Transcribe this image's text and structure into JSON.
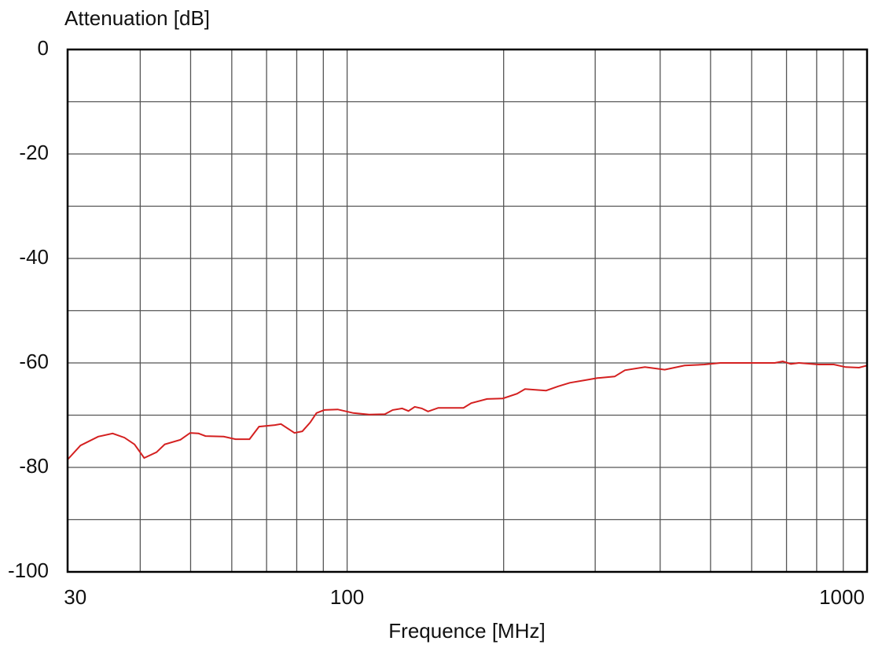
{
  "chart_data": {
    "type": "line",
    "x_label": "Frequence [MHz]",
    "y_label": "Attenuation [dB]",
    "xscale": "log",
    "xlim": [
      29,
      1000
    ],
    "xticks": [
      30,
      100,
      1000
    ],
    "xgrid": [
      40,
      50,
      60,
      70,
      80,
      90,
      100,
      200,
      300,
      400,
      500,
      600,
      700,
      800,
      900
    ],
    "ylim": [
      -100,
      0
    ],
    "yticks": [
      0,
      -20,
      -40,
      -60,
      -80,
      -100
    ],
    "ygrid": [
      -10,
      -20,
      -30,
      -40,
      -50,
      -60,
      -70,
      -80,
      -90
    ],
    "grid": true,
    "x": [
      29,
      30.7,
      33.2,
      35.4,
      37.3,
      39,
      40.7,
      43,
      44.6,
      47.8,
      49.9,
      51.8,
      53.4,
      57.9,
      61,
      64.9,
      67.7,
      72.6,
      74.6,
      79.2,
      82,
      84.9,
      87.3,
      90.4,
      95.9,
      102.8,
      110.3,
      118.2,
      122.4,
      127.6,
      131.2,
      134.9,
      139.2,
      143.1,
      149.7,
      167.4,
      173.3,
      185.8,
      199.3,
      212.2,
      219.9,
      241.4,
      254.3,
      268,
      287.5,
      303,
      327,
      342.3,
      373.9,
      408.2,
      445.7,
      486.6,
      522.5,
      664.6,
      688.5,
      713.6,
      739.5,
      806.5,
      863.1,
      909.6,
      965,
      1000
    ],
    "series": [
      {
        "color": "#d42020",
        "values": [
          -78.5,
          -75.8,
          -74.1,
          -73.5,
          -74.3,
          -75.6,
          -78.2,
          -77.1,
          -75.6,
          -74.7,
          -73.4,
          -73.5,
          -74,
          -74.1,
          -74.6,
          -74.6,
          -72.2,
          -71.9,
          -71.7,
          -73.4,
          -73.1,
          -71.4,
          -69.6,
          -69,
          -68.9,
          -69.6,
          -69.9,
          -69.8,
          -69,
          -68.7,
          -69.2,
          -68.4,
          -68.7,
          -69.3,
          -68.6,
          -68.6,
          -67.7,
          -66.9,
          -66.8,
          -65.9,
          -65,
          -65.3,
          -64.5,
          -63.8,
          -63.3,
          -62.9,
          -62.6,
          -61.4,
          -60.8,
          -61.3,
          -60.5,
          -60.3,
          -60,
          -60,
          -59.7,
          -60.2,
          -60,
          -60.3,
          -60.3,
          -60.8,
          -60.9,
          -60.5
        ]
      }
    ]
  }
}
